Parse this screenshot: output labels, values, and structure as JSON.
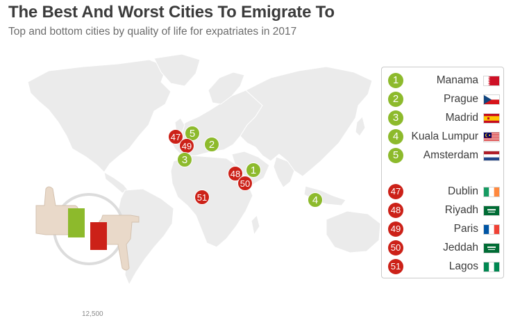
{
  "title": "The Best And Worst Cities To Emigrate To",
  "subtitle": "Top and bottom cities by quality of life for expatriates in 2017",
  "colors": {
    "best": "#8dba2c",
    "worst": "#cc2118",
    "land": "#ebebeb",
    "title": "#3b3b3b"
  },
  "markers": [
    {
      "label": "47",
      "type": "worst",
      "city": "Dublin"
    },
    {
      "label": "5",
      "type": "best",
      "city": "Amsterdam"
    },
    {
      "label": "49",
      "type": "worst",
      "city": "Paris"
    },
    {
      "label": "2",
      "type": "best",
      "city": "Prague"
    },
    {
      "label": "3",
      "type": "best",
      "city": "Madrid"
    },
    {
      "label": "48",
      "type": "worst",
      "city": "Riyadh"
    },
    {
      "label": "1",
      "type": "best",
      "city": "Manama"
    },
    {
      "label": "50",
      "type": "worst",
      "city": "Jeddah"
    },
    {
      "label": "51",
      "type": "worst",
      "city": "Lagos"
    },
    {
      "label": "4",
      "type": "best",
      "city": "Kuala Lumpur"
    }
  ],
  "legend": {
    "best": [
      {
        "rank": "1",
        "city": "Manama",
        "flag": "bahrain-flag"
      },
      {
        "rank": "2",
        "city": "Prague",
        "flag": "czech-flag"
      },
      {
        "rank": "3",
        "city": "Madrid",
        "flag": "spain-flag"
      },
      {
        "rank": "4",
        "city": "Kuala Lumpur",
        "flag": "malaysia-flag"
      },
      {
        "rank": "5",
        "city": "Amsterdam",
        "flag": "netherlands-flag"
      }
    ],
    "worst": [
      {
        "rank": "47",
        "city": "Dublin",
        "flag": "ireland-flag"
      },
      {
        "rank": "48",
        "city": "Riyadh",
        "flag": "saudi-arabia-flag"
      },
      {
        "rank": "49",
        "city": "Paris",
        "flag": "france-flag"
      },
      {
        "rank": "50",
        "city": "Jeddah",
        "flag": "saudi-arabia-flag"
      },
      {
        "rank": "51",
        "city": "Lagos",
        "flag": "nigeria-flag"
      }
    ]
  },
  "footer_number": "12,500"
}
